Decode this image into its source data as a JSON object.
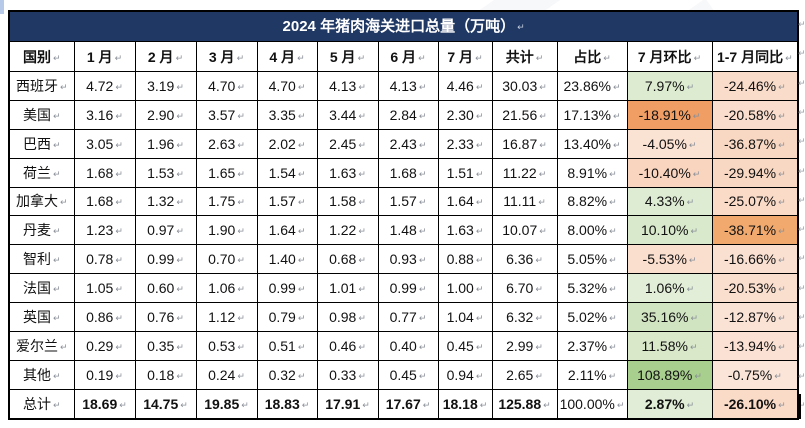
{
  "title": "2024 年猪肉海关进口总量（万吨）",
  "columns": [
    "国别",
    "1 月",
    "2 月",
    "3 月",
    "4 月",
    "5 月",
    "6 月",
    "7 月",
    "共计",
    "占比",
    "7 月环比",
    "1-7 月同比"
  ],
  "rows": [
    {
      "name": "西班牙",
      "months": [
        "4.72",
        "3.19",
        "4.70",
        "4.70",
        "4.13",
        "4.13",
        "4.46"
      ],
      "total": "30.03",
      "share": "23.86%",
      "mom": {
        "text": "7.97%",
        "bg": "#ddebd1"
      },
      "yoy": {
        "text": "-24.46%",
        "bg": "#fadcca"
      },
      "is_total": false
    },
    {
      "name": "美国",
      "months": [
        "3.16",
        "2.90",
        "3.57",
        "3.35",
        "3.44",
        "2.84",
        "2.30"
      ],
      "total": "21.56",
      "share": "17.13%",
      "mom": {
        "text": "-18.91%",
        "bg": "#f09e63"
      },
      "yoy": {
        "text": "-20.58%",
        "bg": "#faddcd"
      },
      "is_total": false
    },
    {
      "name": "巴西",
      "months": [
        "3.05",
        "1.96",
        "2.63",
        "2.02",
        "2.45",
        "2.43",
        "2.33"
      ],
      "total": "16.87",
      "share": "13.40%",
      "mom": {
        "text": "-4.05%",
        "bg": "#fbe3d4"
      },
      "yoy": {
        "text": "-36.87%",
        "bg": "#f9d8c3"
      },
      "is_total": false
    },
    {
      "name": "荷兰",
      "months": [
        "1.68",
        "1.53",
        "1.65",
        "1.54",
        "1.63",
        "1.68",
        "1.51"
      ],
      "total": "11.22",
      "share": "8.91%",
      "mom": {
        "text": "-10.40%",
        "bg": "#f9d5bf"
      },
      "yoy": {
        "text": "-29.94%",
        "bg": "#f9d8c3"
      },
      "is_total": false
    },
    {
      "name": "加拿大",
      "months": [
        "1.68",
        "1.32",
        "1.75",
        "1.57",
        "1.58",
        "1.57",
        "1.64"
      ],
      "total": "11.11",
      "share": "8.82%",
      "mom": {
        "text": "4.33%",
        "bg": "#dfecd4"
      },
      "yoy": {
        "text": "-25.07%",
        "bg": "#fadbc8"
      },
      "is_total": false
    },
    {
      "name": "丹麦",
      "months": [
        "1.23",
        "0.97",
        "1.90",
        "1.64",
        "1.22",
        "1.48",
        "1.63"
      ],
      "total": "10.07",
      "share": "8.00%",
      "mom": {
        "text": "10.10%",
        "bg": "#d9e9cb"
      },
      "yoy": {
        "text": "-38.71%",
        "bg": "#f2a96d"
      },
      "is_total": false
    },
    {
      "name": "智利",
      "months": [
        "0.78",
        "0.99",
        "0.70",
        "1.40",
        "0.68",
        "0.93",
        "0.88"
      ],
      "total": "6.36",
      "share": "5.05%",
      "mom": {
        "text": "-5.53%",
        "bg": "#fbdfce"
      },
      "yoy": {
        "text": "-16.66%",
        "bg": "#fae0d1"
      },
      "is_total": false
    },
    {
      "name": "法国",
      "months": [
        "1.05",
        "0.60",
        "1.06",
        "0.99",
        "1.01",
        "0.99",
        "1.00"
      ],
      "total": "6.70",
      "share": "5.32%",
      "mom": {
        "text": "1.06%",
        "bg": "#e2eed8"
      },
      "yoy": {
        "text": "-20.53%",
        "bg": "#fadece"
      },
      "is_total": false
    },
    {
      "name": "英国",
      "months": [
        "0.86",
        "0.76",
        "1.12",
        "0.79",
        "0.98",
        "0.77",
        "1.04"
      ],
      "total": "6.32",
      "share": "5.02%",
      "mom": {
        "text": "35.16%",
        "bg": "#d1e4c2"
      },
      "yoy": {
        "text": "-12.87%",
        "bg": "#fae2d5"
      },
      "is_total": false
    },
    {
      "name": "爱尔兰",
      "months": [
        "0.29",
        "0.35",
        "0.53",
        "0.51",
        "0.46",
        "0.40",
        "0.45"
      ],
      "total": "2.99",
      "share": "2.37%",
      "mom": {
        "text": "11.58%",
        "bg": "#d8e8c9"
      },
      "yoy": {
        "text": "-13.94%",
        "bg": "#fae1d3"
      },
      "is_total": false
    },
    {
      "name": "其他",
      "months": [
        "0.19",
        "0.18",
        "0.24",
        "0.32",
        "0.33",
        "0.45",
        "0.94"
      ],
      "total": "2.65",
      "share": "2.11%",
      "mom": {
        "text": "108.89%",
        "bg": "#a8cf8d"
      },
      "yoy": {
        "text": "-0.75%",
        "bg": "#fbe5d9"
      },
      "is_total": false
    },
    {
      "name": "总计",
      "months": [
        "18.69",
        "14.75",
        "19.85",
        "18.83",
        "17.91",
        "17.67",
        "18.18"
      ],
      "total": "125.88",
      "share": "100.00%",
      "mom": {
        "text": "2.87%",
        "bg": "#e1edd6"
      },
      "yoy": {
        "text": "-26.10%",
        "bg": "#fadbc8"
      },
      "is_total": true
    }
  ],
  "colors": {
    "title_bar": "#1f3864",
    "positive_strong": "#a8cf8d",
    "positive_light": "#ddebd1",
    "negative_strong": "#f09e63",
    "negative_light": "#fadcca"
  },
  "marks": {
    "cell_end_mark": "↵",
    "row_end_mark": "↵"
  }
}
